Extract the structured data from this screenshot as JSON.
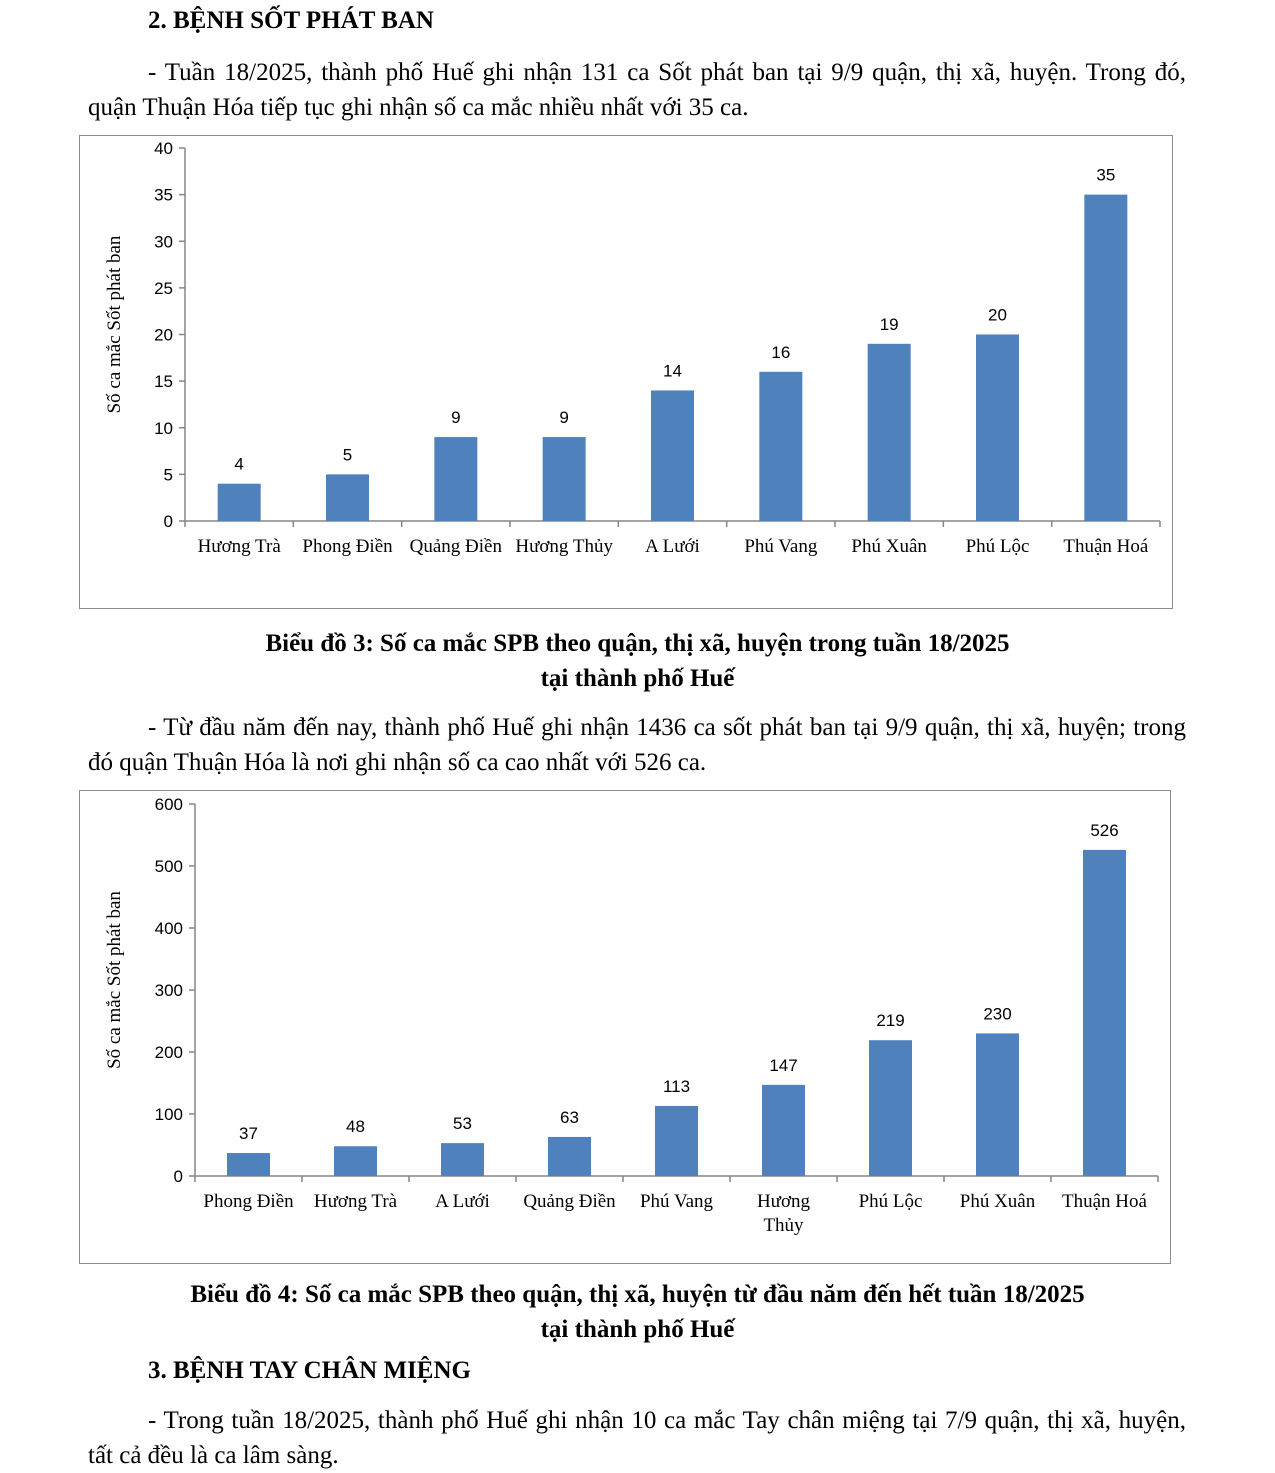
{
  "section2": {
    "heading": "2. BỆNH SỐT PHÁT BAN",
    "para1": "- Tuần 18/2025, thành phố Huế ghi nhận 131 ca Sốt phát ban tại 9/9 quận, thị xã, huyện. Trong đó, quận Thuận Hóa tiếp tục ghi nhận số ca mắc nhiều nhất với 35 ca.",
    "caption1_line1": "Biểu đồ 3: Số ca mắc SPB theo quận, thị xã, huyện trong tuần 18/2025",
    "caption1_line2": "tại thành phố Huế",
    "para2": "- Từ đầu năm đến nay, thành phố Huế ghi nhận 1436 ca sốt phát ban tại 9/9 quận, thị xã, huyện; trong đó quận Thuận Hóa là nơi ghi nhận số ca cao nhất với 526 ca.",
    "caption2_line1": "Biểu đồ 4: Số ca mắc SPB theo quận, thị xã, huyện từ đầu năm đến hết tuần 18/2025",
    "caption2_line2": "tại thành phố Huế"
  },
  "section3": {
    "heading": "3. BỆNH TAY CHÂN MIỆNG",
    "para1": "- Trong tuần 18/2025, thành phố Huế ghi nhận 10 ca mắc Tay chân miệng tại 7/9 quận, thị xã, huyện, tất cả đều là ca lâm sàng."
  },
  "chart_data": [
    {
      "type": "bar",
      "categories": [
        "Hương Trà",
        "Phong Điền",
        "Quảng Điền",
        "Hương Thủy",
        "A Lưới",
        "Phú Vang",
        "Phú Xuân",
        "Phú Lộc",
        "Thuận Hoá"
      ],
      "values": [
        4,
        5,
        9,
        9,
        14,
        16,
        19,
        20,
        35
      ],
      "ylabel": "Số ca mắc Sốt phát ban",
      "ylim": [
        0,
        40
      ],
      "yticks": [
        0,
        5,
        10,
        15,
        20,
        25,
        30,
        35,
        40
      ],
      "bar_color": "#4f81bd",
      "grid": false,
      "legend": "none"
    },
    {
      "type": "bar",
      "categories": [
        "Phong Điền",
        "Hương Trà",
        "A Lưới",
        "Quảng Điền",
        "Phú Vang",
        "Hương Thủy",
        "Phú Lộc",
        "Phú Xuân",
        "Thuận Hoá"
      ],
      "values": [
        37,
        48,
        53,
        63,
        113,
        147,
        219,
        230,
        526
      ],
      "ylabel": "Số ca mắc Sốt phát ban",
      "ylim": [
        0,
        600
      ],
      "yticks": [
        0,
        100,
        200,
        300,
        400,
        500,
        600
      ],
      "bar_color": "#4f81bd",
      "grid": false,
      "legend": "none"
    }
  ]
}
